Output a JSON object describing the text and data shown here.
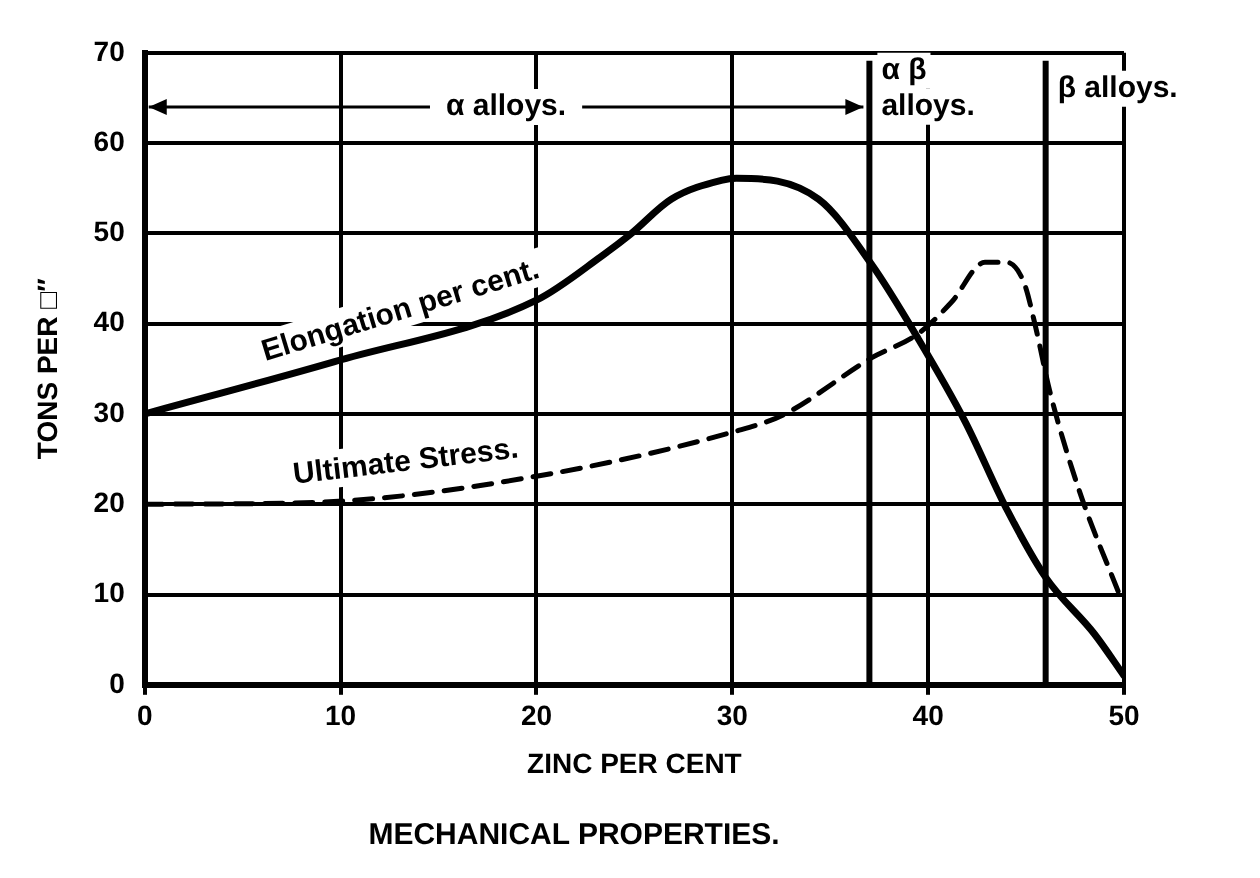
{
  "chart_data": {
    "type": "line",
    "title": "MECHANICAL PROPERTIES.",
    "xlabel": "ZINC PER CENT",
    "ylabel": "TONS PER □″",
    "xlim": [
      0,
      50
    ],
    "xticks": [
      0,
      10,
      20,
      30,
      40,
      50
    ],
    "ylim": [
      0,
      70
    ],
    "yticks": [
      0,
      10,
      20,
      30,
      40,
      50,
      60,
      70
    ],
    "grid": true,
    "marker": "none",
    "annotations": [
      {
        "text": "α alloys.",
        "x": 37,
        "y": 64
      }
    ],
    "ref_lines": [
      {
        "axis": "x",
        "value": 37,
        "label": "α β alloys."
      },
      {
        "axis": "x",
        "value": 46,
        "label": "β alloys."
      }
    ],
    "series": [
      {
        "name": "Elongation per cent.",
        "color": "#000000",
        "line_style": "solid",
        "x": [
          0,
          9.7,
          20,
          23.4,
          24.8,
          26.9,
          29.5,
          30.2,
          34.4,
          37.1,
          39.5,
          41.9,
          44,
          46,
          48.5,
          50
        ],
        "values": [
          30,
          35.8,
          42.6,
          47.6,
          49.9,
          53.8,
          55.9,
          56.1,
          53.8,
          46.6,
          38.3,
          29.1,
          19.5,
          11.9,
          5.6,
          1
        ]
      },
      {
        "name": "Ultimate Stress.",
        "color": "#000000",
        "line_style": "dashed",
        "x": [
          0,
          8.6,
          20,
          30.2,
          32.6,
          37.1,
          39.5,
          41.2,
          42.9,
          44,
          44.9,
          45.5,
          46.2,
          47.7,
          49.8
        ],
        "values": [
          20,
          20.2,
          23.1,
          28.1,
          29.9,
          36.2,
          38.9,
          42.4,
          46.8,
          46.8,
          44.5,
          39.5,
          32.6,
          21.6,
          9.8
        ]
      }
    ]
  }
}
